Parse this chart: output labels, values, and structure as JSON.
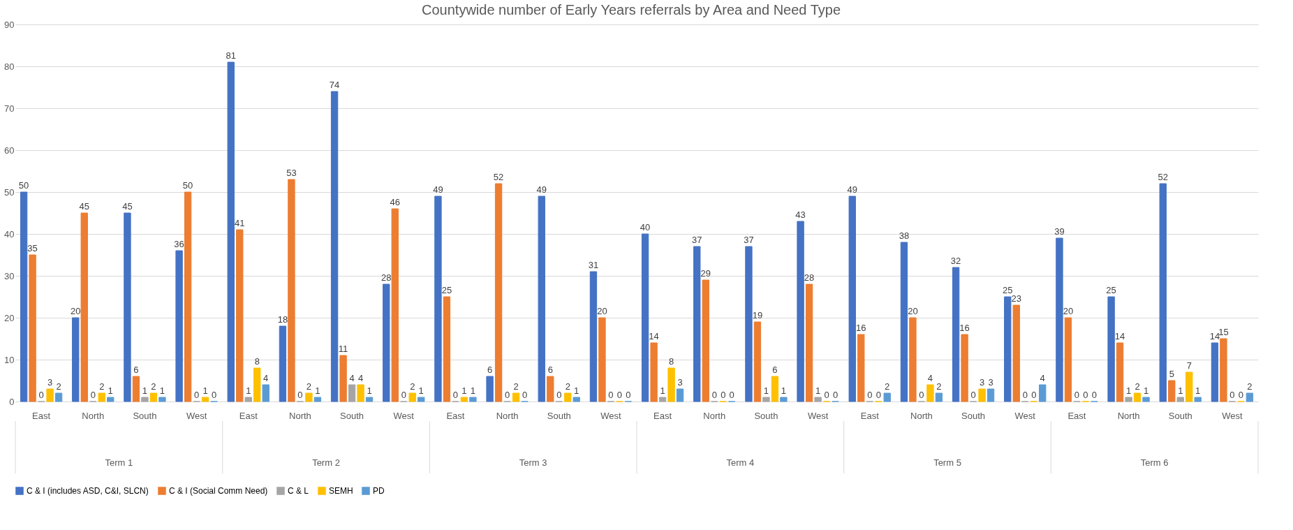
{
  "chart_data": {
    "type": "bar",
    "title": "Countywide number of Early Years referrals by Area and Need Type",
    "categories": [
      "East",
      "North",
      "South",
      "West",
      "East",
      "North",
      "South",
      "West",
      "East",
      "North",
      "South",
      "West",
      "East",
      "North",
      "South",
      "West",
      "East",
      "North",
      "South",
      "West",
      "East",
      "North",
      "South",
      "West"
    ],
    "annotations": [
      "Term 1",
      "Term 2",
      "Term 3",
      "Term 4",
      "Term 5",
      "Term 6"
    ],
    "series": [
      {
        "name": "C & I (includes ASD, C&I, SLCN)",
        "color": "#4472c4",
        "values": [
          50,
          20,
          45,
          36,
          81,
          18,
          74,
          28,
          49,
          6,
          49,
          31,
          40,
          37,
          37,
          43,
          49,
          38,
          32,
          25,
          39,
          25,
          52,
          14
        ]
      },
      {
        "name": "C & I (Social Comm Need)",
        "color": "#ed7d31",
        "values": [
          35,
          45,
          6,
          50,
          41,
          53,
          11,
          46,
          25,
          52,
          6,
          20,
          14,
          29,
          19,
          28,
          16,
          20,
          16,
          23,
          20,
          14,
          5,
          15
        ]
      },
      {
        "name": "C & L",
        "color": "#a5a5a5",
        "values": [
          0,
          0,
          1,
          0,
          1,
          0,
          4,
          0,
          0,
          0,
          0,
          0,
          1,
          0,
          1,
          1,
          0,
          0,
          0,
          0,
          0,
          1,
          1,
          0
        ]
      },
      {
        "name": "SEMH",
        "color": "#ffc000",
        "values": [
          3,
          2,
          2,
          1,
          8,
          2,
          4,
          2,
          1,
          2,
          2,
          0,
          8,
          0,
          6,
          0,
          0,
          4,
          3,
          0,
          0,
          2,
          7,
          0
        ]
      },
      {
        "name": "PD",
        "color": "#5b9bd5",
        "values": [
          2,
          1,
          1,
          0,
          4,
          1,
          1,
          1,
          1,
          0,
          1,
          0,
          3,
          0,
          1,
          0,
          2,
          2,
          3,
          4,
          0,
          1,
          1,
          2
        ]
      }
    ],
    "ylim": [
      0,
      90
    ],
    "yticks": [
      0,
      10,
      20,
      30,
      40,
      50,
      60,
      70,
      80,
      90
    ],
    "grid": "y",
    "legend": "bottom",
    "data_labels": true
  }
}
